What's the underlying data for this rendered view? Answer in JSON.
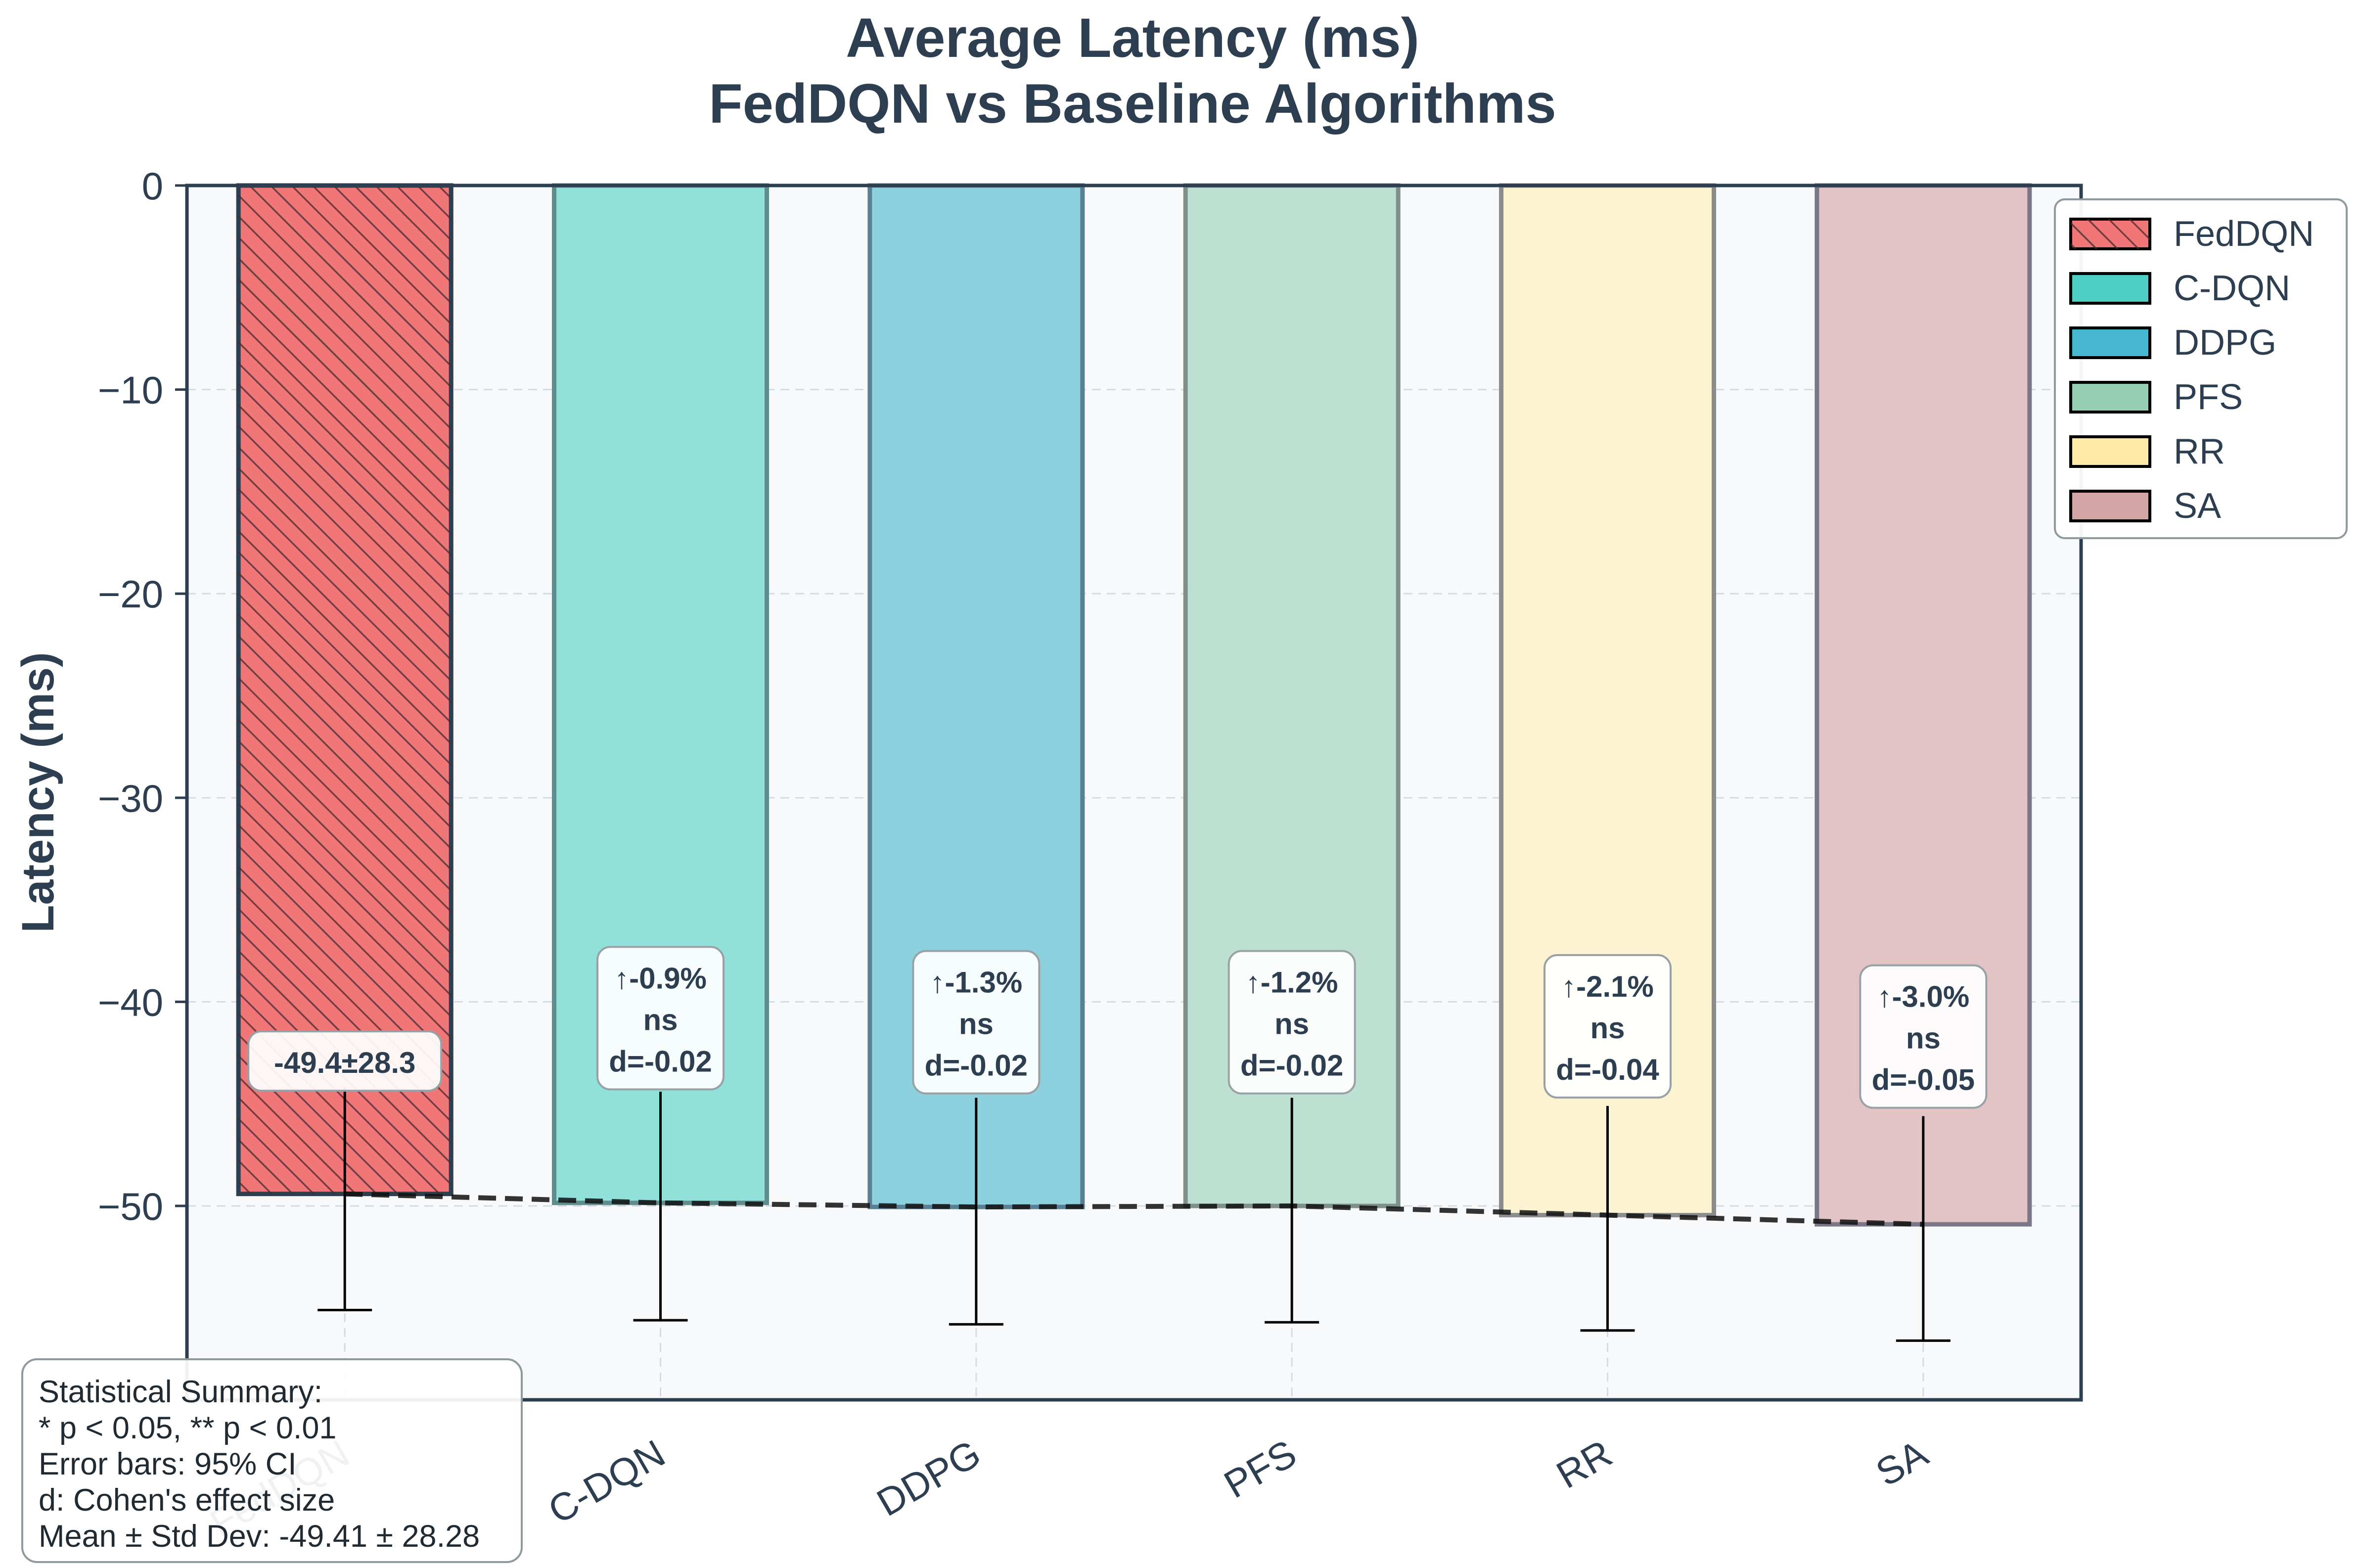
{
  "chart_data": {
    "type": "bar",
    "title": "Average Latency (ms)",
    "subtitle": "FedDQN vs Baseline Algorithms",
    "xlabel": "",
    "ylabel": "Latency (ms)",
    "categories": [
      "FedDQN",
      "C-DQN",
      "DDPG",
      "PFS",
      "RR",
      "SA"
    ],
    "values": [
      -49.41,
      -49.85,
      -50.05,
      -50.0,
      -50.45,
      -50.9
    ],
    "error_bars": {
      "lower": [
        -55.1,
        -55.6,
        -55.8,
        -55.7,
        -56.1,
        -56.6
      ],
      "upper": [
        -44.2,
        -44.4,
        -44.7,
        -44.7,
        -45.1,
        -45.6
      ],
      "meaning": "95% CI"
    },
    "colors": [
      "#f07677",
      "#92e0da",
      "#8dd0de",
      "#bee0d2",
      "#fbf3d2",
      "#e3c4c6"
    ],
    "edge_colors": [
      "#2c3e50",
      "#5f8c8c",
      "#5a8096",
      "#7f908a",
      "#8c8c8c",
      "#7a7888"
    ],
    "hatched": [
      true,
      false,
      false,
      false,
      false,
      false
    ],
    "ylim": [
      -59.5,
      0
    ],
    "yticks": [
      0,
      -10,
      -20,
      -30,
      -40,
      -50
    ],
    "ytick_labels": [
      "0",
      "−10",
      "−20",
      "−30",
      "−40",
      "−50"
    ],
    "grid": true,
    "trend_line": true,
    "bar_annotations": [
      [
        "-49.4±28.3"
      ],
      [
        "↑-0.9%",
        "ns",
        "d=-0.02"
      ],
      [
        "↑-1.3%",
        "ns",
        "d=-0.02"
      ],
      [
        "↑-1.2%",
        "ns",
        "d=-0.02"
      ],
      [
        "↑-2.1%",
        "ns",
        "d=-0.04"
      ],
      [
        "↑-3.0%",
        "ns",
        "d=-0.05"
      ]
    ],
    "annotation_anchor": [
      -42.9,
      -40.8,
      -41.0,
      -41.0,
      -41.2,
      -41.7
    ],
    "legend": {
      "placement": "upper-right outside",
      "entries": [
        "FedDQN",
        "C-DQN",
        "DDPG",
        "PFS",
        "RR",
        "SA"
      ],
      "swatch_colors": [
        "#f07677",
        "#4ecdc4",
        "#45b7d1",
        "#96ceb4",
        "#ffeaa7",
        "#d4a5a5"
      ]
    },
    "summary_box": {
      "lines": [
        "Statistical Summary:",
        "* p < 0.05, ** p < 0.01",
        "Error bars: 95% CI",
        "d: Cohen's effect size",
        "Mean ± Std Dev: -49.41 ± 28.28"
      ]
    }
  }
}
